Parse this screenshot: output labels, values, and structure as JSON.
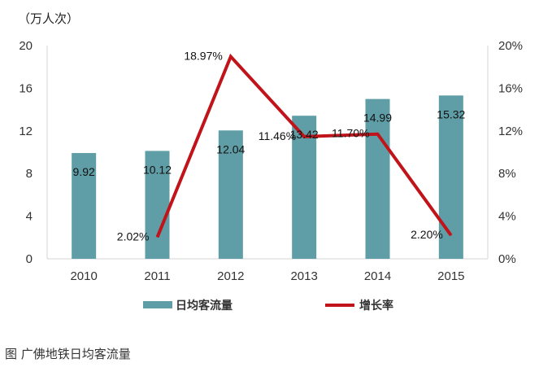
{
  "caption": "图 广佛地铁日均客流量",
  "chart_data": {
    "type": "bar+line",
    "y_unit_label": "（万人次）",
    "categories": [
      "2010",
      "2011",
      "2012",
      "2013",
      "2014",
      "2015"
    ],
    "bar_series": {
      "name": "日均客流量",
      "values": [
        9.92,
        10.12,
        12.04,
        13.42,
        14.99,
        15.32
      ],
      "labels": [
        "9.92",
        "10.12",
        "12.04",
        "13.42",
        "14.99",
        "15.32"
      ],
      "color": "#5f9ea6"
    },
    "line_series": {
      "name": "增长率",
      "categories": [
        "2011",
        "2012",
        "2013",
        "2014",
        "2015"
      ],
      "values": [
        2.02,
        18.97,
        11.46,
        11.7,
        2.2
      ],
      "labels": [
        "2.02%",
        "18.97%",
        "11.46%",
        "11.70%",
        "2.20%"
      ],
      "color": "#c0131a"
    },
    "y_left": {
      "min": 0,
      "max": 20,
      "ticks": [
        "0",
        "4",
        "8",
        "12",
        "16",
        "20"
      ]
    },
    "y_right": {
      "min": 0,
      "max": 20,
      "ticks": [
        "0%",
        "4%",
        "8%",
        "12%",
        "16%",
        "20%"
      ]
    },
    "legend_position": "bottom",
    "grid": false
  }
}
